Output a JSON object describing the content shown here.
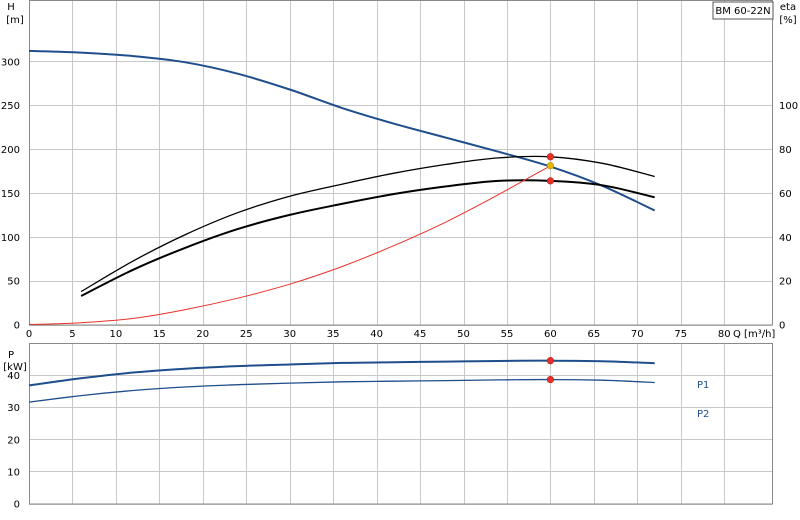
{
  "model_label": "BM 60-22N",
  "chart_data": [
    {
      "type": "line",
      "x_unit_label": "Q [m³/h]",
      "x_ticks": [
        0,
        5,
        10,
        15,
        20,
        25,
        30,
        35,
        40,
        45,
        50,
        55,
        60,
        65,
        70,
        75,
        80
      ],
      "xlim": [
        0,
        85.5
      ],
      "left_axis": {
        "label_line1": "H",
        "label_line2": "[m]",
        "ylim": [
          0,
          370
        ],
        "ticks": [
          0,
          50,
          100,
          150,
          200,
          250,
          300
        ]
      },
      "right_axis": {
        "label_line1": "eta",
        "label_line2": "[%]",
        "ylim": [
          0,
          148
        ],
        "ticks": [
          0,
          20,
          40,
          60,
          80,
          100
        ]
      },
      "series": [
        {
          "key": "H",
          "axis": "left",
          "color": "#1f4e8c",
          "width": 2,
          "x": [
            0,
            6,
            12,
            18,
            24,
            30,
            36,
            42,
            48,
            54,
            60,
            66,
            72
          ],
          "y": [
            312,
            310,
            306,
            299,
            286,
            268,
            247,
            229,
            213,
            197,
            180,
            158,
            130
          ]
        },
        {
          "key": "eta_pump",
          "axis": "right",
          "color": "#000000",
          "width": 1.3,
          "x": [
            6,
            12,
            18,
            24,
            30,
            36,
            42,
            48,
            54,
            60,
            66,
            72
          ],
          "y": [
            15,
            29,
            41,
            51,
            58.5,
            64,
            69,
            73,
            76,
            76.5,
            73.5,
            67.5
          ]
        },
        {
          "key": "eta_total",
          "axis": "right",
          "color": "#000000",
          "width": 2,
          "x": [
            6,
            12,
            18,
            24,
            30,
            36,
            42,
            48,
            54,
            60,
            66,
            72
          ],
          "y": [
            13,
            25,
            35,
            43.5,
            50,
            55,
            59.5,
            63,
            65.5,
            65.5,
            63.5,
            58
          ]
        },
        {
          "key": "system",
          "axis": "left",
          "color": "#e8302a",
          "width": 1,
          "x": [
            0,
            6,
            12,
            18,
            24,
            30,
            36,
            42,
            48,
            54,
            60
          ],
          "y": [
            0,
            2,
            7,
            17,
            30,
            46,
            66,
            90,
            117,
            148,
            181
          ]
        }
      ],
      "points": [
        {
          "x": 60,
          "y": 181,
          "axis": "left",
          "color": "#e6b800"
        },
        {
          "x": 60,
          "y": 76.5,
          "axis": "right",
          "color": "#e8302a"
        },
        {
          "x": 60,
          "y": 65.5,
          "axis": "right",
          "color": "#e8302a"
        }
      ]
    },
    {
      "type": "line",
      "x_ticks": [
        0,
        5,
        10,
        15,
        20,
        25,
        30,
        35,
        40,
        45,
        50,
        55,
        60,
        65,
        70,
        75,
        80
      ],
      "xlim": [
        0,
        85.5
      ],
      "left_axis": {
        "label_line1": "P",
        "label_line2": "[kW]",
        "ylim": [
          0,
          50
        ],
        "ticks": [
          0,
          10,
          20,
          30,
          40
        ]
      },
      "series": [
        {
          "name": "P1",
          "color": "#1f4e8c",
          "width": 2,
          "x": [
            0,
            6,
            12,
            18,
            24,
            30,
            36,
            42,
            48,
            54,
            60,
            66,
            72
          ],
          "y": [
            36.8,
            39,
            40.8,
            42,
            42.8,
            43.3,
            43.8,
            44,
            44.2,
            44.4,
            44.5,
            44.3,
            43.7
          ]
        },
        {
          "name": "P2",
          "color": "#1f4e8c",
          "width": 1.3,
          "x": [
            0,
            6,
            12,
            18,
            24,
            30,
            36,
            42,
            48,
            54,
            60,
            66,
            72
          ],
          "y": [
            31.6,
            33.6,
            35.2,
            36.3,
            37,
            37.5,
            37.9,
            38.1,
            38.3,
            38.5,
            38.6,
            38.4,
            37.7
          ]
        }
      ],
      "points": [
        {
          "x": 60,
          "y": 44.5,
          "color": "#e8302a"
        },
        {
          "x": 60,
          "y": 38.6,
          "color": "#e8302a"
        }
      ]
    }
  ]
}
